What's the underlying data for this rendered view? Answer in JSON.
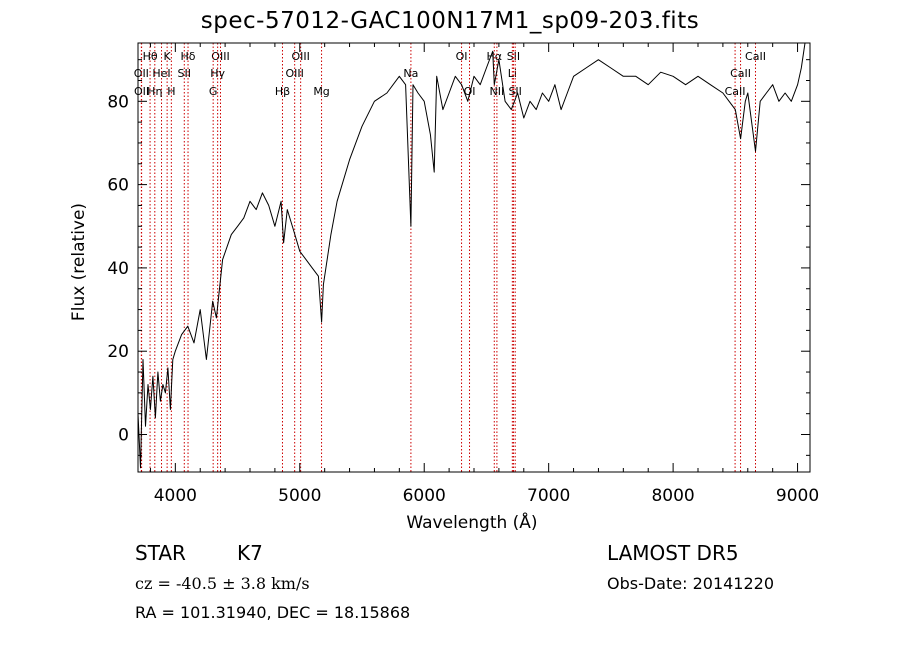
{
  "header": {
    "title": "spec-57012-GAC100N17M1_sp09-203.fits"
  },
  "footer": {
    "object_type": "STAR",
    "subclass": "K7",
    "survey": "LAMOST DR5",
    "cz": "cz = -40.5 ± 3.8 km/s",
    "obs_date": "Obs-Date: 20141220",
    "coords": "RA = 101.31940, DEC =  18.15868"
  },
  "chart_data": {
    "type": "line",
    "title": "spec-57012-GAC100N17M1_sp09-203.fits",
    "xlabel": "Wavelength (Å)",
    "ylabel": "Flux (relative)",
    "xlim": [
      3700,
      9100
    ],
    "ylim": [
      -9,
      94
    ],
    "xticks": [
      4000,
      5000,
      6000,
      7000,
      8000,
      9000
    ],
    "yticks": [
      0,
      20,
      40,
      60,
      80
    ],
    "line_color": "#000000",
    "marker_color": "#cc0000",
    "series": [
      {
        "x": [
          3700,
          3720,
          3740,
          3760,
          3780,
          3800,
          3820,
          3840,
          3860,
          3880,
          3900,
          3920,
          3940,
          3960,
          3980,
          4000,
          4050,
          4100,
          4150,
          4200,
          4250,
          4300,
          4330,
          4380,
          4450,
          4500,
          4550,
          4600,
          4650,
          4700,
          4750,
          4800,
          4850,
          4870,
          4900,
          4950,
          5000,
          5050,
          5100,
          5150,
          5175,
          5190,
          5250,
          5300,
          5400,
          5500,
          5600,
          5700,
          5800,
          5850,
          5893,
          5910,
          5950,
          6000,
          6050,
          6080,
          6100,
          6150,
          6200,
          6250,
          6300,
          6350,
          6400,
          6450,
          6500,
          6550,
          6563,
          6600,
          6650,
          6700,
          6750,
          6800,
          6850,
          6900,
          6950,
          7000,
          7050,
          7100,
          7150,
          7200,
          7300,
          7400,
          7500,
          7600,
          7700,
          7800,
          7900,
          8000,
          8100,
          8200,
          8300,
          8400,
          8450,
          8500,
          8542,
          8580,
          8600,
          8662,
          8700,
          8750,
          8800,
          8850,
          8900,
          8950,
          9000,
          9030,
          9060
        ],
        "y": [
          5,
          -8,
          18,
          2,
          12,
          6,
          14,
          4,
          15,
          8,
          12,
          10,
          16,
          6,
          18,
          20,
          24,
          26,
          22,
          30,
          18,
          32,
          28,
          42,
          48,
          50,
          52,
          56,
          54,
          58,
          55,
          50,
          56,
          46,
          54,
          49,
          44,
          42,
          40,
          38,
          27,
          36,
          48,
          56,
          66,
          74,
          80,
          82,
          86,
          84,
          50,
          84,
          82,
          80,
          72,
          63,
          86,
          78,
          82,
          86,
          84,
          80,
          86,
          84,
          88,
          92,
          84,
          90,
          80,
          78,
          82,
          76,
          80,
          78,
          82,
          80,
          84,
          78,
          82,
          86,
          88,
          90,
          88,
          86,
          86,
          84,
          87,
          86,
          84,
          86,
          84,
          82,
          80,
          78,
          71,
          80,
          82,
          68,
          80,
          82,
          84,
          80,
          82,
          80,
          84,
          88,
          94
        ]
      }
    ],
    "line_markers": [
      {
        "label": "Hθ",
        "x": 3797,
        "row": 0
      },
      {
        "label": "K",
        "x": 3934,
        "row": 0
      },
      {
        "label": "Hδ",
        "x": 4102,
        "row": 0
      },
      {
        "label": "OIII",
        "x": 4363,
        "row": 0
      },
      {
        "label": "OIII",
        "x": 5007,
        "row": 0
      },
      {
        "label": "OI",
        "x": 6300,
        "row": 0
      },
      {
        "label": "Hα",
        "x": 6563,
        "row": 0
      },
      {
        "label": "SII",
        "x": 6717,
        "row": 0
      },
      {
        "label": "CaII",
        "x": 8662,
        "row": 0
      },
      {
        "label": "OII",
        "x": 3727,
        "row": 1
      },
      {
        "label": "HeI",
        "x": 3889,
        "row": 1
      },
      {
        "label": "SII",
        "x": 4072,
        "row": 1
      },
      {
        "label": "Hγ",
        "x": 4340,
        "row": 1
      },
      {
        "label": "OIII",
        "x": 4959,
        "row": 1
      },
      {
        "label": "Na",
        "x": 5893,
        "row": 1
      },
      {
        "label": "Li",
        "x": 6708,
        "row": 1
      },
      {
        "label": "CaII",
        "x": 8542,
        "row": 1
      },
      {
        "label": "OII",
        "x": 3729,
        "row": 2
      },
      {
        "label": "Hη",
        "x": 3835,
        "row": 2
      },
      {
        "label": "H",
        "x": 3968,
        "row": 2
      },
      {
        "label": "G",
        "x": 4304,
        "row": 2
      },
      {
        "label": "Hβ",
        "x": 4861,
        "row": 2
      },
      {
        "label": "Mg",
        "x": 5175,
        "row": 2
      },
      {
        "label": "OI",
        "x": 6364,
        "row": 2
      },
      {
        "label": "NII",
        "x": 6584,
        "row": 2
      },
      {
        "label": "SII",
        "x": 6731,
        "row": 2
      },
      {
        "label": "CaII",
        "x": 8498,
        "row": 2
      }
    ]
  }
}
